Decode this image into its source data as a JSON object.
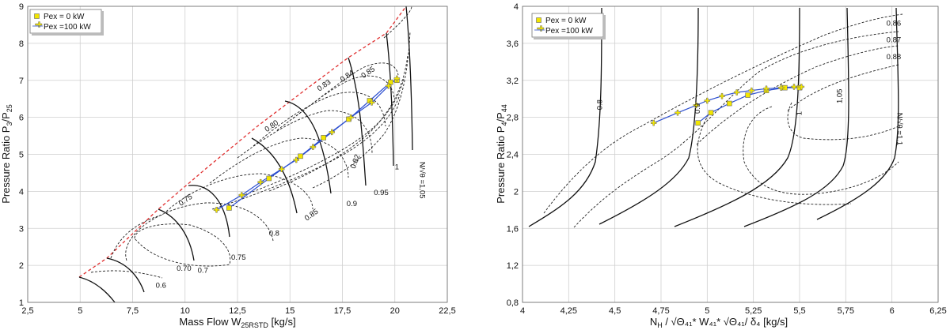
{
  "chart_data": [
    {
      "type": "line",
      "title": "",
      "xlabel": {
        "main": "Mass Flow W",
        "sub": "25RSTD",
        "unit": " [kg/s]"
      },
      "ylabel": {
        "a": "Pressure Ratio P",
        "s1": "3",
        "b": "/P",
        "s2": "25"
      },
      "xlim": [
        2.5,
        22.5
      ],
      "ylim": [
        1,
        9
      ],
      "xticks": [
        "2,5",
        "5",
        "7,5",
        "10",
        "12,5",
        "15",
        "17,5",
        "20",
        "22,5"
      ],
      "yticks": [
        "1",
        "2",
        "3",
        "4",
        "5",
        "6",
        "7",
        "8",
        "9"
      ],
      "grid": true,
      "legend_position": "top-left",
      "legend": [
        "Pex = 0 kW",
        "Pex =100 kW"
      ],
      "series": [
        {
          "name": "Pex = 0 kW",
          "marker": "square",
          "x": [
            12.1,
            14.0,
            15.5,
            16.6,
            17.8,
            18.8,
            19.8,
            20.1
          ],
          "y": [
            3.55,
            4.35,
            4.95,
            5.45,
            5.95,
            6.45,
            6.95,
            7.0
          ]
        },
        {
          "name": "Pex =100 kW",
          "marker": "plus",
          "x": [
            11.5,
            12.7,
            13.6,
            14.6,
            15.3,
            16.1,
            17.0,
            17.9,
            18.9,
            19.7,
            20.1
          ],
          "y": [
            3.5,
            3.9,
            4.25,
            4.6,
            4.85,
            5.2,
            5.6,
            6.0,
            6.4,
            6.85,
            7.05
          ]
        }
      ],
      "annotations": [
        {
          "text": "0.70",
          "x": 9.6,
          "y": 1.85
        },
        {
          "text": "0.75",
          "x": 9.8,
          "y": 3.6
        },
        {
          "text": "0.80",
          "x": 13.9,
          "y": 5.6
        },
        {
          "text": "0.83",
          "x": 16.4,
          "y": 6.7
        },
        {
          "text": "0.84",
          "x": 17.5,
          "y": 6.95
        },
        {
          "text": "0.85",
          "x": 18.5,
          "y": 7.05
        },
        {
          "text": "0.82",
          "x": 18.1,
          "y": 4.6
        },
        {
          "text": "0.6",
          "x": 8.6,
          "y": 1.4
        },
        {
          "text": "0.7",
          "x": 10.6,
          "y": 1.8
        },
        {
          "text": "0.75",
          "x": 12.2,
          "y": 2.15
        },
        {
          "text": "0.8",
          "x": 14.0,
          "y": 2.8
        },
        {
          "text": "0.85",
          "x": 15.8,
          "y": 3.2
        },
        {
          "text": "0.9",
          "x": 17.7,
          "y": 3.6
        },
        {
          "text": "0.95",
          "x": 19.0,
          "y": 3.9
        },
        {
          "text": "1",
          "x": 20.0,
          "y": 4.6
        },
        {
          "text": "N/√θ =1,05",
          "x": 21.2,
          "y": 4.8
        }
      ]
    },
    {
      "type": "line",
      "title": "",
      "xlabel": {
        "main": "N",
        "sub": "H",
        "unit": " / √Θ₄₁* W₄₁* √Θ₄₁/ δ₄ [kg/s]"
      },
      "ylabel": {
        "a": "Pressure Ratio P",
        "s1": "4",
        "b": "/P",
        "s2": "44"
      },
      "xlim": [
        4,
        6.25
      ],
      "ylim": [
        0.8,
        4
      ],
      "xticks": [
        "4",
        "4,25",
        "4,5",
        "4,75",
        "5",
        "5,25",
        "5,5",
        "5,75",
        "6",
        "6,25"
      ],
      "yticks": [
        "0,8",
        "1,2",
        "1,6",
        "2",
        "2,4",
        "2,8",
        "3,2",
        "3,6",
        "4"
      ],
      "grid": true,
      "legend_position": "top-left",
      "legend": [
        "Pex = 0 kW",
        "Pex =100 kW"
      ],
      "series": [
        {
          "name": "Pex = 0 kW",
          "marker": "square",
          "x": [
            4.95,
            5.02,
            5.12,
            5.22,
            5.32,
            5.42,
            5.5
          ],
          "y": [
            2.74,
            2.85,
            2.95,
            3.04,
            3.09,
            3.12,
            3.12
          ]
        },
        {
          "name": "Pex =100 kW",
          "marker": "plus",
          "x": [
            4.71,
            4.84,
            4.94,
            5.0,
            5.08,
            5.16,
            5.24,
            5.32,
            5.4,
            5.47,
            5.51
          ],
          "y": [
            2.74,
            2.85,
            2.93,
            2.98,
            3.03,
            3.07,
            3.09,
            3.11,
            3.12,
            3.13,
            3.13
          ]
        }
      ],
      "annotations": [
        {
          "text": "0.86",
          "x": 5.97,
          "y": 3.79
        },
        {
          "text": "0.87",
          "x": 5.97,
          "y": 3.61
        },
        {
          "text": "0.88",
          "x": 5.97,
          "y": 3.43
        },
        {
          "text": "0.8",
          "x": 4.43,
          "y": 2.88
        },
        {
          "text": "0.9",
          "x": 4.96,
          "y": 2.84
        },
        {
          "text": "1",
          "x": 5.51,
          "y": 2.82
        },
        {
          "text": "1,05",
          "x": 5.73,
          "y": 2.95
        },
        {
          "text": "N/√θ =1,1",
          "x": 6.03,
          "y": 2.85
        }
      ]
    }
  ]
}
